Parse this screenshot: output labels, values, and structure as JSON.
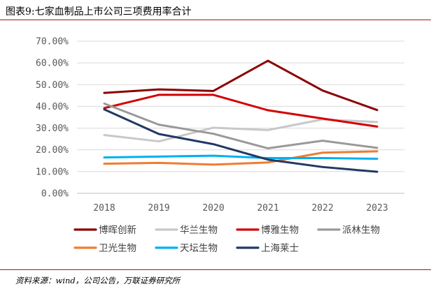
{
  "title": "图表9:七家血制品上市公司三项费用率合计",
  "source": "资料来源：wind，公司公告，万联证券研究所",
  "chart_data": {
    "type": "line",
    "title": "",
    "xlabel": "",
    "ylabel": "",
    "x": [
      "2018",
      "2019",
      "2020",
      "2021",
      "2022",
      "2023"
    ],
    "ylim": [
      0,
      70
    ],
    "yticks": [
      0,
      10,
      20,
      30,
      40,
      50,
      60,
      70
    ],
    "ytick_labels": [
      "0.00%",
      "10.00%",
      "20.00%",
      "30.00%",
      "40.00%",
      "50.00%",
      "60.00%",
      "70.00%"
    ],
    "grid": "horizontal",
    "legend_position": "bottom",
    "series": [
      {
        "name": "博晖创新",
        "color": "#8b0000",
        "values": [
          46.2,
          47.8,
          47.1,
          61.0,
          47.3,
          38.3
        ]
      },
      {
        "name": "华兰生物",
        "color": "#c8c8c8",
        "values": [
          26.8,
          23.9,
          30.2,
          29.1,
          34.0,
          32.8
        ]
      },
      {
        "name": "博雅生物",
        "color": "#d40000",
        "values": [
          39.2,
          45.3,
          45.3,
          38.2,
          34.4,
          30.7
        ]
      },
      {
        "name": "派林生物",
        "color": "#999999",
        "values": [
          41.3,
          31.6,
          27.4,
          20.7,
          24.2,
          20.9
        ]
      },
      {
        "name": "卫光生物",
        "color": "#ed7d31",
        "values": [
          13.6,
          14.0,
          13.2,
          14.2,
          18.7,
          19.3
        ]
      },
      {
        "name": "天坛生物",
        "color": "#00b0f0",
        "values": [
          16.5,
          16.9,
          17.3,
          16.2,
          16.2,
          15.9
        ]
      },
      {
        "name": "上海莱士",
        "color": "#203864",
        "values": [
          38.6,
          27.3,
          22.6,
          15.5,
          12.1,
          9.9
        ]
      }
    ]
  }
}
